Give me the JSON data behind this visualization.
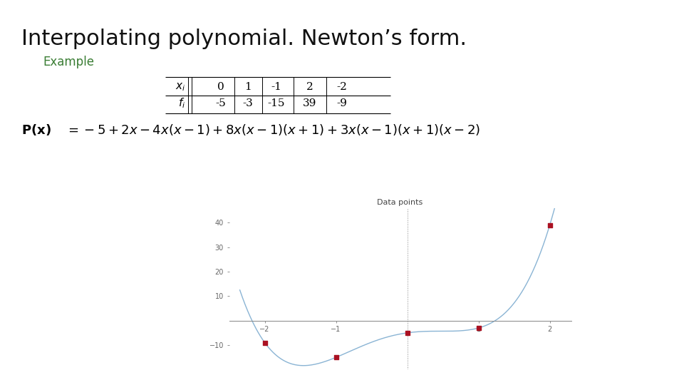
{
  "title": "Interpolating polynomial. Newton’s form.",
  "subtitle": "Example",
  "subtitle_color": "#3a7d34",
  "background_color": "#ffffff",
  "row_xi": [
    "0",
    "1",
    "-1",
    "2",
    "-2"
  ],
  "row_fi": [
    "-5",
    "-3",
    "-15",
    "39",
    "-9"
  ],
  "data_points_x": [
    0,
    1,
    -1,
    2,
    -2
  ],
  "data_points_y": [
    -5,
    -3,
    -15,
    39,
    -9
  ],
  "plot_title": "Data points",
  "plot_xlim": [
    -2.5,
    2.3
  ],
  "plot_ylim": [
    -20,
    46
  ],
  "plot_yticks": [
    -10,
    10,
    20,
    30,
    40
  ],
  "plot_xticks": [
    -2,
    -1,
    1,
    2
  ],
  "line_color": "#8ab4d4",
  "point_color": "#aa1122",
  "axis_color": "#888888",
  "tick_color": "#666666",
  "title_fontsize": 22,
  "subtitle_fontsize": 12,
  "table_fontsize": 11,
  "formula_fontsize": 13,
  "plot_title_fontsize": 8
}
